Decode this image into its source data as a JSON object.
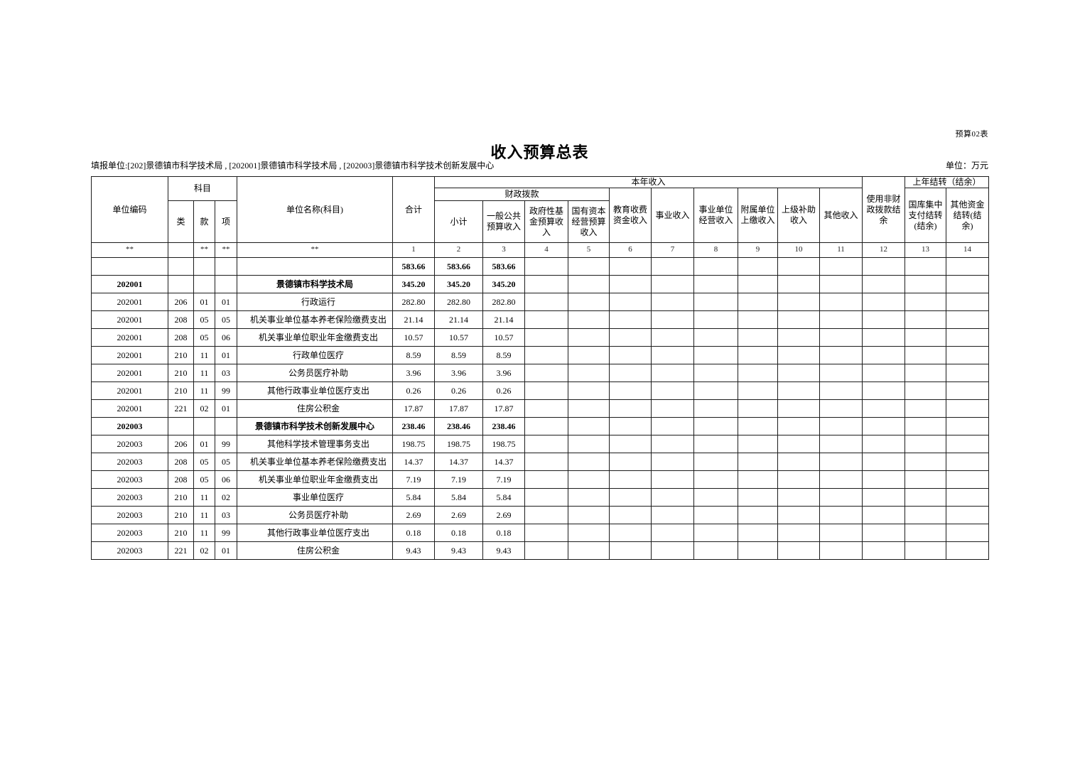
{
  "page": {
    "form_note": "预算02表",
    "title": "收入预算总表",
    "reporting_unit": "填报单位:[202]景德镇市科学技术局 , [202001]景德镇市科学技术局 , [202003]景德镇市科学技术创新发展中心",
    "unit_note": "单位：万元",
    "background_color": "#ffffff",
    "text_color": "#000000"
  },
  "table": {
    "header": {
      "unit_code": "单位编码",
      "subject": "科目",
      "subject_class": "类",
      "subject_section": "款",
      "subject_item": "项",
      "unit_name": "单位名称(科目)",
      "total": "合计",
      "current_year_income": "本年收入",
      "fiscal_appropriation": "财政拨款",
      "subtotal": "小计",
      "general_public_budget_income": "一般公共预算收入",
      "gov_fund_budget_income": "政府性基金预算收入",
      "state_capital_budget_income": "国有资本经营预算收入",
      "education_fee_income": "教育收费资金收入",
      "business_income": "事业收入",
      "business_operating_income": "事业单位经营收入",
      "affiliated_remitted_income": "附属单位上缴收入",
      "superior_subsidy_income": "上级补助收入",
      "other_income": "其他收入",
      "non_fiscal_balance": "使用非财政拨款结余",
      "last_year_carryover": "上年结转（结余）",
      "treasury_centralized_carryover": "国库集中支付结转(结余)",
      "other_funds_carryover": "其他资金结转(结余)"
    },
    "index_row": [
      "**",
      "",
      "**",
      "**",
      "**",
      "1",
      "2",
      "3",
      "4",
      "5",
      "6",
      "7",
      "8",
      "9",
      "10",
      "11",
      "12",
      "13",
      "14"
    ],
    "rows": [
      {
        "type": "total",
        "code": "",
        "cls": "",
        "sec": "",
        "item": "",
        "name": "",
        "values": [
          "583.66",
          "583.66",
          "583.66",
          "",
          "",
          "",
          "",
          "",
          "",
          "",
          "",
          "",
          "",
          ""
        ]
      },
      {
        "type": "group",
        "code": "202001",
        "cls": "",
        "sec": "",
        "item": "",
        "name": "景德镇市科学技术局",
        "values": [
          "345.20",
          "345.20",
          "345.20",
          "",
          "",
          "",
          "",
          "",
          "",
          "",
          "",
          "",
          "",
          ""
        ]
      },
      {
        "type": "detail",
        "code": "202001",
        "cls": "206",
        "sec": "01",
        "item": "01",
        "name": "行政运行",
        "values": [
          "282.80",
          "282.80",
          "282.80",
          "",
          "",
          "",
          "",
          "",
          "",
          "",
          "",
          "",
          "",
          ""
        ]
      },
      {
        "type": "detail",
        "code": "202001",
        "cls": "208",
        "sec": "05",
        "item": "05",
        "name": "机关事业单位基本养老保险缴费支出",
        "values": [
          "21.14",
          "21.14",
          "21.14",
          "",
          "",
          "",
          "",
          "",
          "",
          "",
          "",
          "",
          "",
          ""
        ]
      },
      {
        "type": "detail",
        "code": "202001",
        "cls": "208",
        "sec": "05",
        "item": "06",
        "name": "机关事业单位职业年金缴费支出",
        "values": [
          "10.57",
          "10.57",
          "10.57",
          "",
          "",
          "",
          "",
          "",
          "",
          "",
          "",
          "",
          "",
          ""
        ]
      },
      {
        "type": "detail",
        "code": "202001",
        "cls": "210",
        "sec": "11",
        "item": "01",
        "name": "行政单位医疗",
        "values": [
          "8.59",
          "8.59",
          "8.59",
          "",
          "",
          "",
          "",
          "",
          "",
          "",
          "",
          "",
          "",
          ""
        ]
      },
      {
        "type": "detail",
        "code": "202001",
        "cls": "210",
        "sec": "11",
        "item": "03",
        "name": "公务员医疗补助",
        "values": [
          "3.96",
          "3.96",
          "3.96",
          "",
          "",
          "",
          "",
          "",
          "",
          "",
          "",
          "",
          "",
          ""
        ]
      },
      {
        "type": "detail",
        "code": "202001",
        "cls": "210",
        "sec": "11",
        "item": "99",
        "name": "其他行政事业单位医疗支出",
        "values": [
          "0.26",
          "0.26",
          "0.26",
          "",
          "",
          "",
          "",
          "",
          "",
          "",
          "",
          "",
          "",
          ""
        ]
      },
      {
        "type": "detail",
        "code": "202001",
        "cls": "221",
        "sec": "02",
        "item": "01",
        "name": "住房公积金",
        "values": [
          "17.87",
          "17.87",
          "17.87",
          "",
          "",
          "",
          "",
          "",
          "",
          "",
          "",
          "",
          "",
          ""
        ]
      },
      {
        "type": "group",
        "code": "202003",
        "cls": "",
        "sec": "",
        "item": "",
        "name": "景德镇市科学技术创新发展中心",
        "values": [
          "238.46",
          "238.46",
          "238.46",
          "",
          "",
          "",
          "",
          "",
          "",
          "",
          "",
          "",
          "",
          ""
        ]
      },
      {
        "type": "detail",
        "code": "202003",
        "cls": "206",
        "sec": "01",
        "item": "99",
        "name": "其他科学技术管理事务支出",
        "values": [
          "198.75",
          "198.75",
          "198.75",
          "",
          "",
          "",
          "",
          "",
          "",
          "",
          "",
          "",
          "",
          ""
        ]
      },
      {
        "type": "detail",
        "code": "202003",
        "cls": "208",
        "sec": "05",
        "item": "05",
        "name": "机关事业单位基本养老保险缴费支出",
        "values": [
          "14.37",
          "14.37",
          "14.37",
          "",
          "",
          "",
          "",
          "",
          "",
          "",
          "",
          "",
          "",
          ""
        ]
      },
      {
        "type": "detail",
        "code": "202003",
        "cls": "208",
        "sec": "05",
        "item": "06",
        "name": "机关事业单位职业年金缴费支出",
        "values": [
          "7.19",
          "7.19",
          "7.19",
          "",
          "",
          "",
          "",
          "",
          "",
          "",
          "",
          "",
          "",
          ""
        ]
      },
      {
        "type": "detail",
        "code": "202003",
        "cls": "210",
        "sec": "11",
        "item": "02",
        "name": "事业单位医疗",
        "values": [
          "5.84",
          "5.84",
          "5.84",
          "",
          "",
          "",
          "",
          "",
          "",
          "",
          "",
          "",
          "",
          ""
        ]
      },
      {
        "type": "detail",
        "code": "202003",
        "cls": "210",
        "sec": "11",
        "item": "03",
        "name": "公务员医疗补助",
        "values": [
          "2.69",
          "2.69",
          "2.69",
          "",
          "",
          "",
          "",
          "",
          "",
          "",
          "",
          "",
          "",
          ""
        ]
      },
      {
        "type": "detail",
        "code": "202003",
        "cls": "210",
        "sec": "11",
        "item": "99",
        "name": "其他行政事业单位医疗支出",
        "values": [
          "0.18",
          "0.18",
          "0.18",
          "",
          "",
          "",
          "",
          "",
          "",
          "",
          "",
          "",
          "",
          ""
        ]
      },
      {
        "type": "detail",
        "code": "202003",
        "cls": "221",
        "sec": "02",
        "item": "01",
        "name": "住房公积金",
        "values": [
          "9.43",
          "9.43",
          "9.43",
          "",
          "",
          "",
          "",
          "",
          "",
          "",
          "",
          "",
          "",
          ""
        ]
      }
    ]
  }
}
